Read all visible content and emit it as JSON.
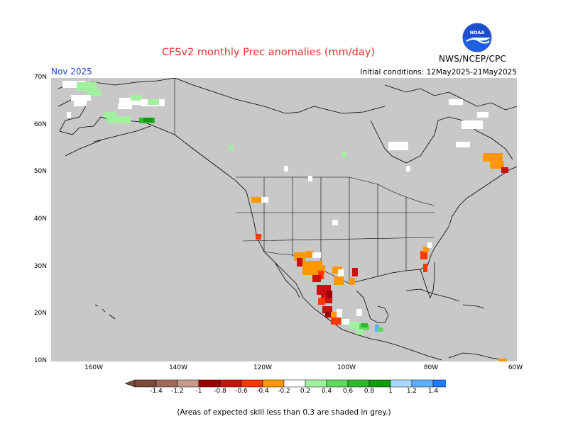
{
  "header": {
    "title": "CFSv2 monthly Prec anomalies (mm/day)",
    "period": "Nov 2025",
    "initial_conditions": "Initial conditions: 12May2025-21May2025",
    "agency": "NWS/NCEP/CPC",
    "logo_text": "NOAA"
  },
  "map": {
    "region": "North America",
    "background_color": "#c8c8c8",
    "lat_labels": [
      "70N",
      "60N",
      "50N",
      "40N",
      "30N",
      "20N",
      "10N"
    ],
    "lon_labels": [
      "160W",
      "140W",
      "120W",
      "100W",
      "80W",
      "60W"
    ]
  },
  "legend": {
    "tick_labels": [
      "-1.4",
      "-1.2",
      "-1",
      "-0.8",
      "-0.6",
      "-0.4",
      "-0.2",
      "0.2",
      "0.4",
      "0.6",
      "0.8",
      "1",
      "1.2",
      "1.4"
    ],
    "colors": [
      "#7a4a3a",
      "#9e6a58",
      "#c49a8a",
      "#9e0000",
      "#cc1010",
      "#ff3800",
      "#ff9800",
      "#ffffff",
      "#a0f0a0",
      "#60d860",
      "#30b830",
      "#109a10",
      "#a8d8ff",
      "#5ab0ff",
      "#1f78ff"
    ]
  },
  "footnote": "(Areas of expected skill less than 0.3 are shaded in grey.)"
}
